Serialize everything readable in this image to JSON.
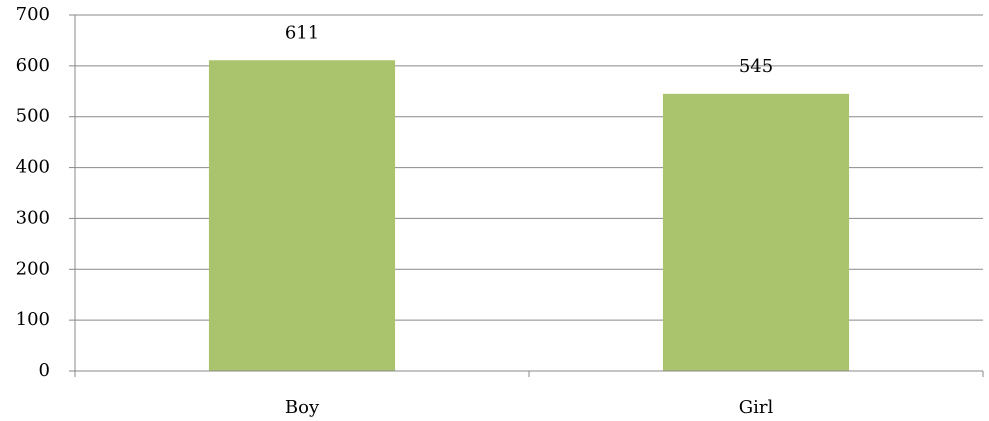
{
  "chart_data": {
    "type": "bar",
    "categories": [
      "Boy",
      "Girl"
    ],
    "values": [
      611,
      545
    ],
    "color": "#a9c46c",
    "ylim": [
      0,
      700
    ],
    "yticks": [
      0,
      100,
      200,
      300,
      400,
      500,
      600,
      700
    ],
    "grid": true
  }
}
